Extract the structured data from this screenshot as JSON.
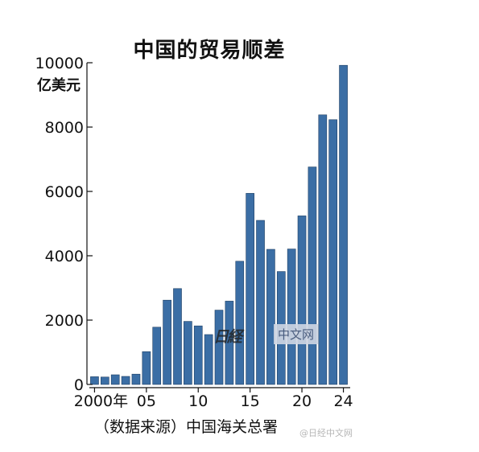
{
  "chart_data": {
    "type": "bar",
    "title": "中国的贸易顺差",
    "ylabel": "亿美元",
    "xlabel": "",
    "ylim": [
      0,
      10000
    ],
    "yticks": [
      0,
      2000,
      4000,
      6000,
      8000,
      10000
    ],
    "yticks_labels": [
      "0",
      "2000",
      "4000",
      "6000",
      "8000",
      "10000"
    ],
    "categories": [
      "2000",
      "2001",
      "2002",
      "2003",
      "2004",
      "2005",
      "2006",
      "2007",
      "2008",
      "2009",
      "2010",
      "2011",
      "2012",
      "2013",
      "2014",
      "2015",
      "2016",
      "2017",
      "2018",
      "2019",
      "2020",
      "2021",
      "2022",
      "2023",
      "2024"
    ],
    "xtick_labels": [
      {
        "index": 0,
        "text": "2000年"
      },
      {
        "index": 5,
        "text": "05"
      },
      {
        "index": 10,
        "text": "10"
      },
      {
        "index": 15,
        "text": "15"
      },
      {
        "index": 20,
        "text": "20"
      },
      {
        "index": 24,
        "text": "24"
      }
    ],
    "values": [
      240,
      230,
      300,
      250,
      320,
      1020,
      1780,
      2620,
      2980,
      1960,
      1820,
      1550,
      2310,
      2590,
      3830,
      5940,
      5100,
      4200,
      3510,
      4210,
      5240,
      6760,
      8380,
      8230,
      9920
    ],
    "bar_color": "#3b6ea5",
    "grid": false,
    "legend": "none"
  },
  "source": "（数据来源）中国海关总署",
  "watermark": {
    "badge": "日経",
    "text": "中文网",
    "corner": "@日经中文网"
  }
}
